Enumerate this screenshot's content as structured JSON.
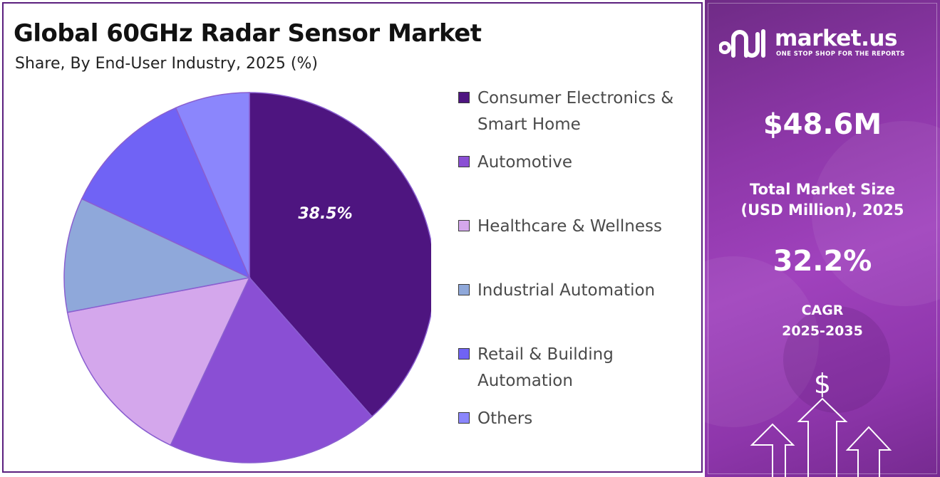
{
  "chart_data": {
    "type": "pie",
    "title": "Global 60GHz Radar Sensor Market",
    "subtitle": "Share, By End-User Industry, 2025 (%)",
    "slices": [
      {
        "label": "Consumer Electronics & Smart Home",
        "value": 38.5,
        "color": "#4e1580",
        "data_label": "38.5%"
      },
      {
        "label": "Automotive",
        "value": 18.5,
        "color": "#8a4fd4",
        "data_label": ""
      },
      {
        "label": "Healthcare & Wellness",
        "value": 15.0,
        "color": "#d4a7ec",
        "data_label": ""
      },
      {
        "label": "Industrial Automation",
        "value": 10.0,
        "color": "#8fa8da",
        "data_label": ""
      },
      {
        "label": "Retail & Building Automation",
        "value": 11.5,
        "color": "#7063f5",
        "data_label": ""
      },
      {
        "label": "Others",
        "value": 6.5,
        "color": "#8b86fc",
        "data_label": ""
      }
    ],
    "start_angle_deg": 0,
    "direction": "clockwise",
    "legend_position": "right"
  },
  "sidebar": {
    "brand_name": "market.us",
    "brand_tagline": "ONE STOP SHOP FOR THE REPORTS",
    "market_size_value": "$48.6M",
    "market_size_label_line1": "Total Market Size",
    "market_size_label_line2": "(USD Million), 2025",
    "cagr_value": "32.2%",
    "cagr_label_line1": "CAGR",
    "cagr_label_line2": "2025-2035",
    "dollar_symbol": "$"
  },
  "colors": {
    "panel_border": "#5b1f7e",
    "sidebar_purple": "#9a3fb8"
  },
  "icons": [
    "market-us-logo-icon",
    "dollar-icon",
    "growth-arrows-icon"
  ]
}
